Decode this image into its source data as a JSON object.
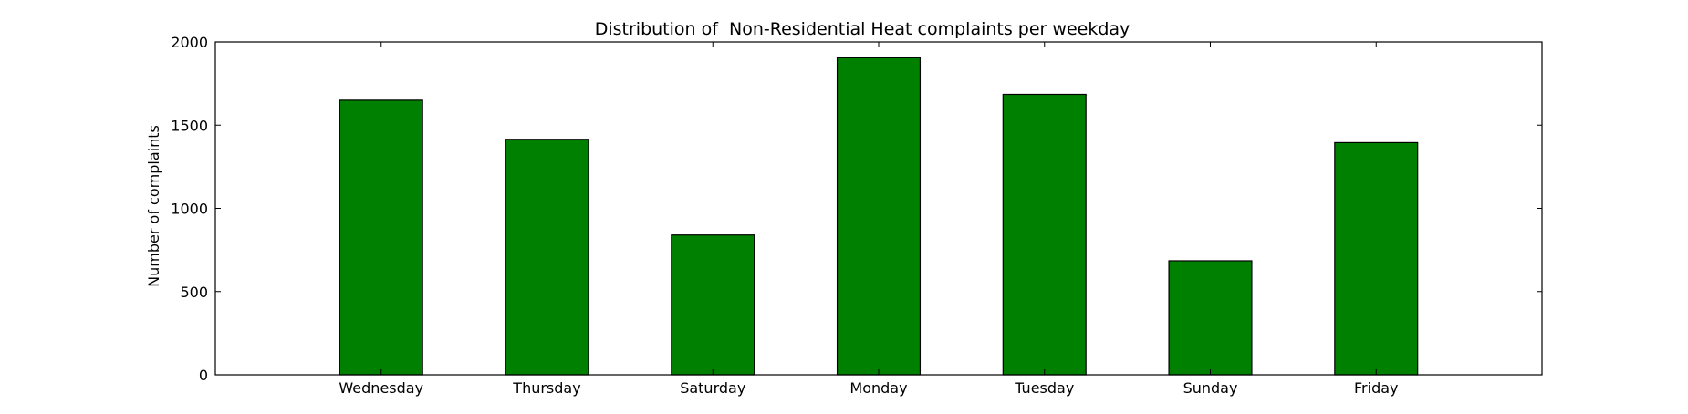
{
  "chart_data": {
    "type": "bar",
    "title": "Distribution of  Non-Residential Heat complaints per weekday",
    "xlabel": "",
    "ylabel": "Number of complaints",
    "categories": [
      "Wednesday",
      "Thursday",
      "Saturday",
      "Monday",
      "Tuesday",
      "Sunday",
      "Friday"
    ],
    "values": [
      1650,
      1415,
      840,
      1905,
      1685,
      685,
      1395
    ],
    "ylim": [
      0,
      2000
    ],
    "yticks": [
      0,
      500,
      1000,
      1500,
      2000
    ],
    "bar_color": "#008000",
    "edge_color": "#000000",
    "grid": false,
    "legend": "none"
  }
}
